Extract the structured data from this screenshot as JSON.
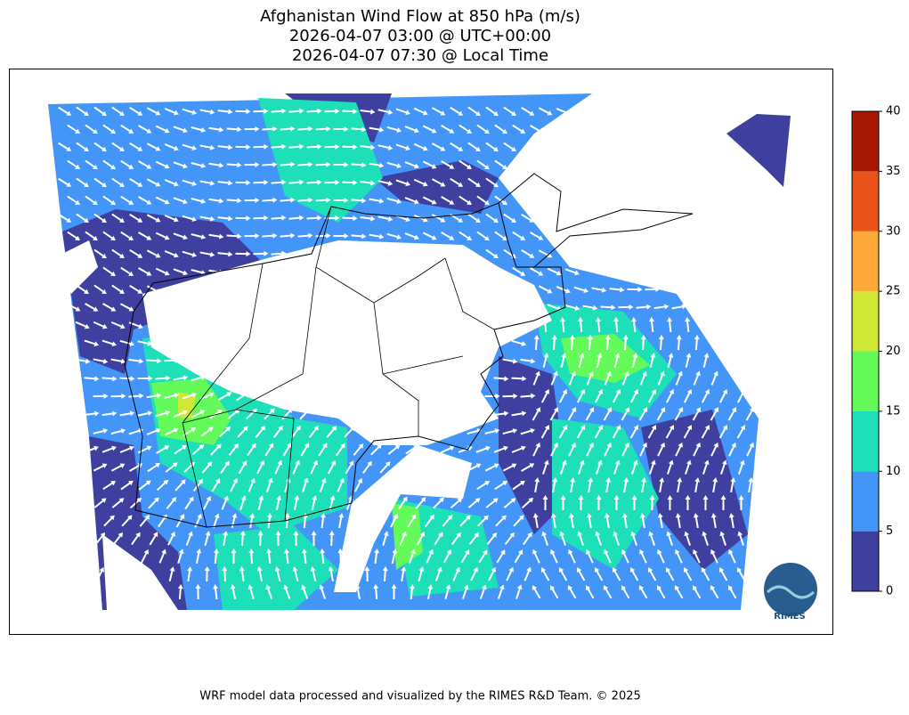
{
  "title": [
    "Afghanistan Wind Flow at 850 hPa (m/s)",
    "2026-04-07 03:00 @ UTC+00:00",
    "2026-04-07 07:30 @ Local Time"
  ],
  "colorbar": {
    "levels": [
      0,
      5,
      10,
      15,
      20,
      25,
      30,
      35,
      40
    ],
    "colors": [
      "#3f3f9f",
      "#4396f8",
      "#1ddfb8",
      "#63fa5a",
      "#cfe835",
      "#fca93a",
      "#e9531a",
      "#a51804"
    ]
  },
  "logo": "RIMES",
  "footer": "WRF model data processed and visualized by the RIMES R&D Team. © 2025"
}
